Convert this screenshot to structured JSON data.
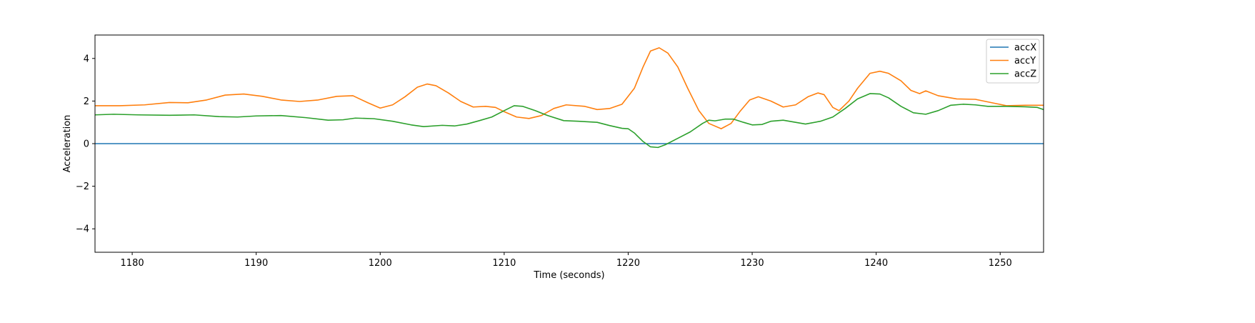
{
  "chart_data": {
    "type": "line",
    "title": "",
    "xlabel": "Time (seconds)",
    "ylabel": "Acceleration",
    "xlim": [
      1177,
      1253.5
    ],
    "ylim": [
      -5.1,
      5.1
    ],
    "xticks": [
      1180,
      1190,
      1200,
      1210,
      1220,
      1230,
      1240,
      1250
    ],
    "yticks": [
      -4,
      -2,
      0,
      2,
      4
    ],
    "xtick_labels": [
      "1180",
      "1190",
      "1200",
      "1210",
      "1220",
      "1230",
      "1240",
      "1250"
    ],
    "ytick_labels": [
      "−4",
      "−2",
      "0",
      "2",
      "4"
    ],
    "grid": false,
    "legend_position": "top-right",
    "series": [
      {
        "name": "accX",
        "color": "#1f77b4",
        "points": [
          [
            1177,
            0
          ],
          [
            1253.5,
            0
          ]
        ]
      },
      {
        "name": "accY",
        "color": "#ff7f0e",
        "points": [
          [
            1177,
            1.78
          ],
          [
            1179,
            1.78
          ],
          [
            1181,
            1.82
          ],
          [
            1183,
            1.93
          ],
          [
            1184.5,
            1.92
          ],
          [
            1186,
            2.05
          ],
          [
            1187.5,
            2.28
          ],
          [
            1189,
            2.33
          ],
          [
            1190.5,
            2.22
          ],
          [
            1192,
            2.05
          ],
          [
            1193.5,
            1.98
          ],
          [
            1195,
            2.05
          ],
          [
            1196.5,
            2.22
          ],
          [
            1197.8,
            2.25
          ],
          [
            1199,
            1.92
          ],
          [
            1200,
            1.67
          ],
          [
            1201,
            1.82
          ],
          [
            1202,
            2.2
          ],
          [
            1203,
            2.65
          ],
          [
            1203.8,
            2.8
          ],
          [
            1204.5,
            2.72
          ],
          [
            1205.5,
            2.38
          ],
          [
            1206.5,
            1.98
          ],
          [
            1207.5,
            1.72
          ],
          [
            1208.5,
            1.75
          ],
          [
            1209.3,
            1.7
          ],
          [
            1210,
            1.5
          ],
          [
            1211,
            1.25
          ],
          [
            1212,
            1.18
          ],
          [
            1213,
            1.32
          ],
          [
            1214,
            1.65
          ],
          [
            1215,
            1.82
          ],
          [
            1216.5,
            1.75
          ],
          [
            1217.5,
            1.6
          ],
          [
            1218.5,
            1.65
          ],
          [
            1219.5,
            1.85
          ],
          [
            1220.5,
            2.6
          ],
          [
            1221.2,
            3.6
          ],
          [
            1221.8,
            4.35
          ],
          [
            1222.5,
            4.5
          ],
          [
            1223.2,
            4.25
          ],
          [
            1224,
            3.6
          ],
          [
            1224.8,
            2.6
          ],
          [
            1225.7,
            1.55
          ],
          [
            1226.5,
            0.95
          ],
          [
            1227.5,
            0.7
          ],
          [
            1228.3,
            0.95
          ],
          [
            1229,
            1.5
          ],
          [
            1229.8,
            2.05
          ],
          [
            1230.5,
            2.2
          ],
          [
            1231.5,
            2.0
          ],
          [
            1232.5,
            1.72
          ],
          [
            1233.5,
            1.82
          ],
          [
            1234.5,
            2.2
          ],
          [
            1235.3,
            2.38
          ],
          [
            1235.8,
            2.3
          ],
          [
            1236.5,
            1.7
          ],
          [
            1237,
            1.55
          ],
          [
            1237.8,
            2.0
          ],
          [
            1238.5,
            2.6
          ],
          [
            1239.5,
            3.3
          ],
          [
            1240.3,
            3.4
          ],
          [
            1241,
            3.3
          ],
          [
            1242,
            2.95
          ],
          [
            1242.8,
            2.5
          ],
          [
            1243.5,
            2.35
          ],
          [
            1244,
            2.48
          ],
          [
            1245,
            2.25
          ],
          [
            1246.5,
            2.1
          ],
          [
            1248,
            2.08
          ],
          [
            1249.5,
            1.9
          ],
          [
            1250.5,
            1.78
          ],
          [
            1252,
            1.8
          ],
          [
            1253.5,
            1.8
          ]
        ]
      },
      {
        "name": "accZ",
        "color": "#2ca02c",
        "points": [
          [
            1177,
            1.35
          ],
          [
            1178.5,
            1.38
          ],
          [
            1180.5,
            1.35
          ],
          [
            1183,
            1.33
          ],
          [
            1185,
            1.35
          ],
          [
            1187,
            1.27
          ],
          [
            1188.5,
            1.25
          ],
          [
            1190,
            1.3
          ],
          [
            1192,
            1.32
          ],
          [
            1194,
            1.22
          ],
          [
            1195.8,
            1.1
          ],
          [
            1197,
            1.12
          ],
          [
            1198,
            1.2
          ],
          [
            1199.5,
            1.17
          ],
          [
            1201,
            1.05
          ],
          [
            1202.5,
            0.88
          ],
          [
            1203.5,
            0.8
          ],
          [
            1205,
            0.86
          ],
          [
            1206,
            0.83
          ],
          [
            1207,
            0.92
          ],
          [
            1208,
            1.08
          ],
          [
            1209,
            1.25
          ],
          [
            1210,
            1.55
          ],
          [
            1210.8,
            1.78
          ],
          [
            1211.5,
            1.75
          ],
          [
            1212.5,
            1.55
          ],
          [
            1213.5,
            1.32
          ],
          [
            1214.8,
            1.08
          ],
          [
            1216,
            1.05
          ],
          [
            1217.5,
            1.0
          ],
          [
            1218.5,
            0.85
          ],
          [
            1219.5,
            0.72
          ],
          [
            1220,
            0.7
          ],
          [
            1220.5,
            0.5
          ],
          [
            1221.2,
            0.1
          ],
          [
            1221.8,
            -0.15
          ],
          [
            1222.4,
            -0.18
          ],
          [
            1223,
            -0.05
          ],
          [
            1224,
            0.25
          ],
          [
            1225,
            0.55
          ],
          [
            1226,
            0.95
          ],
          [
            1226.5,
            1.1
          ],
          [
            1227,
            1.07
          ],
          [
            1227.8,
            1.15
          ],
          [
            1228.5,
            1.15
          ],
          [
            1229.3,
            1.0
          ],
          [
            1230,
            0.88
          ],
          [
            1230.8,
            0.9
          ],
          [
            1231.5,
            1.05
          ],
          [
            1232.5,
            1.1
          ],
          [
            1233.5,
            1.0
          ],
          [
            1234.3,
            0.92
          ],
          [
            1235.5,
            1.05
          ],
          [
            1236.5,
            1.25
          ],
          [
            1237.5,
            1.65
          ],
          [
            1238.5,
            2.1
          ],
          [
            1239.5,
            2.35
          ],
          [
            1240.3,
            2.33
          ],
          [
            1241,
            2.15
          ],
          [
            1242,
            1.75
          ],
          [
            1243,
            1.45
          ],
          [
            1244,
            1.38
          ],
          [
            1245,
            1.55
          ],
          [
            1246,
            1.8
          ],
          [
            1247,
            1.85
          ],
          [
            1248,
            1.82
          ],
          [
            1249,
            1.75
          ],
          [
            1250.5,
            1.75
          ],
          [
            1252,
            1.73
          ],
          [
            1253,
            1.7
          ],
          [
            1253.5,
            1.6
          ]
        ]
      }
    ]
  }
}
